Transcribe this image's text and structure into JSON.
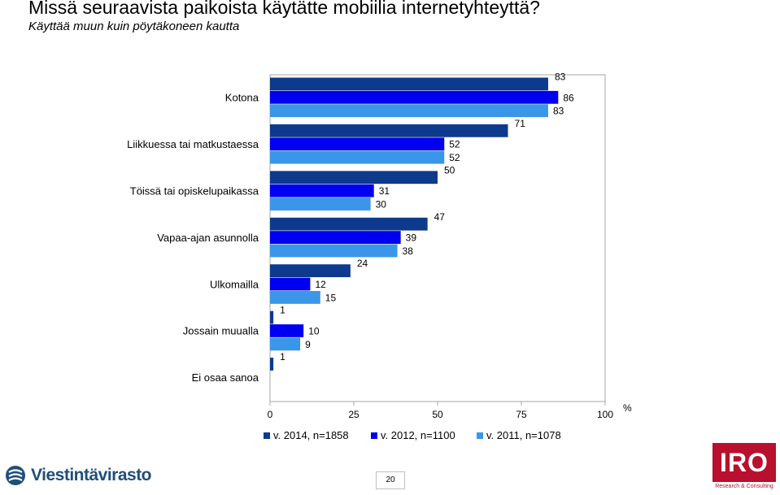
{
  "header": {
    "title": "Missä seuraavista paikoista käytätte mobiilia internetyhteyttä?",
    "subtitle": "Käyttää muun kuin pöytäkoneen kautta"
  },
  "chart_data": {
    "type": "bar",
    "orientation": "horizontal",
    "categories": [
      "Kotona",
      "Liikkuessa tai matkustaessa",
      "Töissä tai opiskelupaikassa",
      "Vapaa-ajan asunnolla",
      "Ulkomailla",
      "Jossain muualla",
      "Ei osaa sanoa"
    ],
    "series": [
      {
        "name": "v. 2014, n=1858",
        "color": "#0d3a8c",
        "values": [
          83,
          71,
          50,
          47,
          24,
          1,
          1
        ]
      },
      {
        "name": "v. 2012, n=1100",
        "color": "#0000f0",
        "values": [
          86,
          52,
          31,
          39,
          12,
          10,
          null
        ]
      },
      {
        "name": "v. 2011, n=1078",
        "color": "#3a96e8",
        "values": [
          83,
          52,
          30,
          38,
          15,
          9,
          null
        ]
      }
    ],
    "x_ticks": [
      "0",
      "25",
      "50",
      "75",
      "100"
    ],
    "x_unit": "%",
    "xlim": [
      0,
      100
    ],
    "legend_position": "bottom",
    "grid": false
  },
  "footer": {
    "brand_left": "Viestintävirasto",
    "page_number": "20",
    "brand_right": "IRO",
    "brand_right_sub": "Research & Consulting"
  },
  "icons": {
    "left_logo": "viestintavirasto-logo-icon"
  }
}
